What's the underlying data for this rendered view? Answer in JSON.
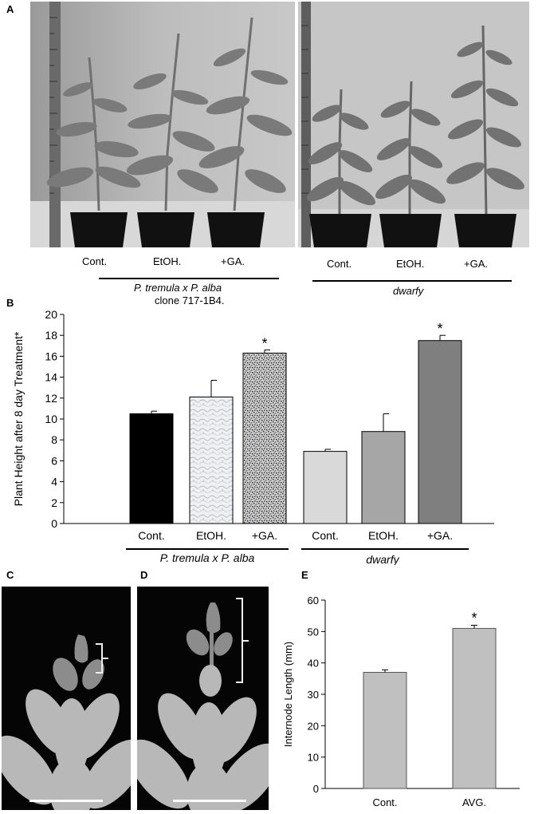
{
  "panels": {
    "a": {
      "letter": "A",
      "left_group": {
        "labels": [
          "Cont.",
          "EtOH.",
          "+GA."
        ],
        "name_italic": "P. tremula x P. alba",
        "name_plain": "clone 717-1B4."
      },
      "right_group": {
        "labels": [
          "Cont.",
          "EtOH.",
          "+GA."
        ],
        "name_italic": "dwarfy"
      }
    },
    "b": {
      "letter": "B"
    },
    "c": {
      "letter": "C"
    },
    "d": {
      "letter": "D"
    },
    "e": {
      "letter": "E"
    }
  },
  "chart_data": [
    {
      "type": "bar",
      "panel": "B",
      "ylabel": "Plant Height after 8 day Treatment*",
      "ylim": [
        0,
        20
      ],
      "yticks": [
        0,
        2,
        4,
        6,
        8,
        10,
        12,
        14,
        16,
        18,
        20
      ],
      "categories": [
        "Cont.",
        "EtOH.",
        "+GA.",
        "Cont.",
        "EtOH.",
        "+GA."
      ],
      "values": [
        10.5,
        12.1,
        16.3,
        6.9,
        8.8,
        17.5
      ],
      "errors": [
        0.25,
        1.6,
        0.3,
        0.2,
        1.7,
        0.5
      ],
      "significance": [
        "",
        "",
        "*",
        "",
        "",
        "*"
      ],
      "fills": [
        "#000000",
        "texture-light",
        "texture-speckle",
        "#d9d9d9",
        "#a6a6a6",
        "#7f7f7f"
      ],
      "groups": [
        {
          "name_italic": "P. tremula x P. alba",
          "name_plain": "clone 717-1B4."
        },
        {
          "name_italic": "dwarfy",
          "name_plain": ""
        }
      ],
      "grid": false
    },
    {
      "type": "bar",
      "panel": "E",
      "ylabel": "Internode Length (mm)",
      "ylim": [
        0,
        60
      ],
      "yticks": [
        0,
        10,
        20,
        30,
        40,
        50,
        60
      ],
      "categories": [
        "Cont.",
        "AVG."
      ],
      "values": [
        37,
        51
      ],
      "errors": [
        0.8,
        1.0
      ],
      "significance": [
        "",
        "*"
      ],
      "bar_color": "#c0c0c0",
      "grid": false
    }
  ]
}
